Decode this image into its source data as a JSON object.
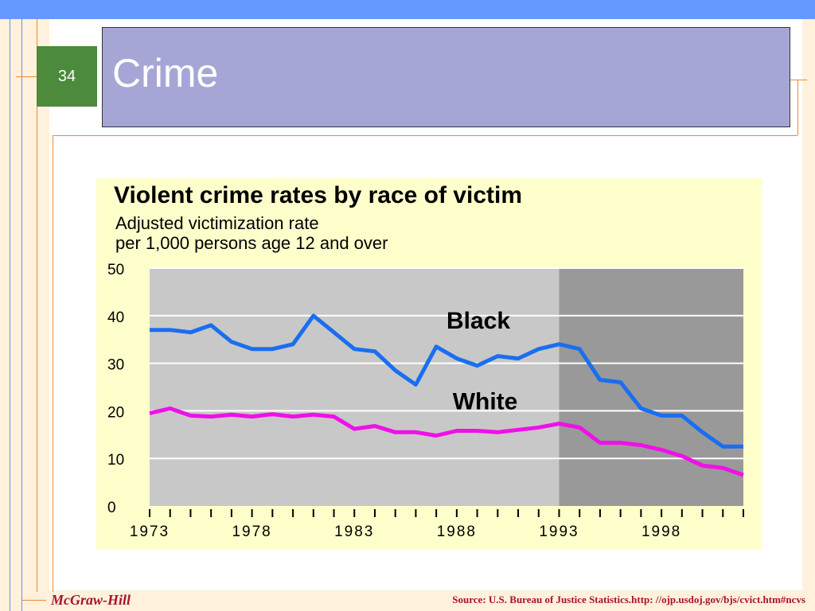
{
  "slide": {
    "number": "34",
    "title": "Crime",
    "publisher": "McGraw-Hill",
    "source": "Source: U.S. Bureau of Justice Statistics.http: //ojp.usdoj.gov/bjs/cvict.htm#ncvs"
  },
  "colors": {
    "black_series": "#1a6ef0",
    "white_series": "#f010e8",
    "panel_bg": "#ffffcc",
    "plot_light": "#c8c8c8",
    "plot_dark": "#999999",
    "title_box": "#a6a6d6",
    "slide_number_box": "#4c8a3c",
    "top_band": "#6699ff"
  },
  "chart_data": {
    "type": "line",
    "title": "Violent crime rates by race of victim",
    "subtitle_lines": [
      "Adjusted victimization rate",
      "per 1,000 persons age 12 and over"
    ],
    "xlabel": "",
    "ylabel": "",
    "xlim": [
      1973,
      2002
    ],
    "ylim": [
      0,
      50
    ],
    "yticks": [
      0,
      10,
      20,
      30,
      40,
      50
    ],
    "xtick_labels": [
      "1973",
      "1978",
      "1983",
      "1988",
      "1993",
      "1998"
    ],
    "x_minor_ticks_every": 1,
    "grid": "horizontal",
    "shaded_from": 1993,
    "x": [
      1973,
      1974,
      1975,
      1976,
      1977,
      1978,
      1979,
      1980,
      1981,
      1982,
      1983,
      1984,
      1985,
      1986,
      1987,
      1988,
      1989,
      1990,
      1991,
      1992,
      1993,
      1994,
      1995,
      1996,
      1997,
      1998,
      1999,
      2000,
      2001,
      2002
    ],
    "series": [
      {
        "name": "Black",
        "color": "#1a6ef0",
        "values": [
          37,
          37,
          36.5,
          38,
          34.5,
          33,
          33,
          34,
          40,
          36.5,
          33,
          32.5,
          28.5,
          25.5,
          33.5,
          31,
          29.5,
          31.5,
          31,
          33,
          34,
          33,
          26.5,
          26,
          20.5,
          19,
          19,
          15.5,
          12.5,
          12.5
        ]
      },
      {
        "name": "White",
        "color": "#f010e8",
        "values": [
          19.5,
          20.5,
          19,
          18.8,
          19.2,
          18.8,
          19.3,
          18.8,
          19.2,
          18.8,
          16.2,
          16.8,
          15.5,
          15.5,
          14.8,
          15.8,
          15.8,
          15.5,
          16,
          16.5,
          17.3,
          16.5,
          13.3,
          13.3,
          12.8,
          11.8,
          10.5,
          8.5,
          8,
          6.5
        ]
      }
    ]
  }
}
